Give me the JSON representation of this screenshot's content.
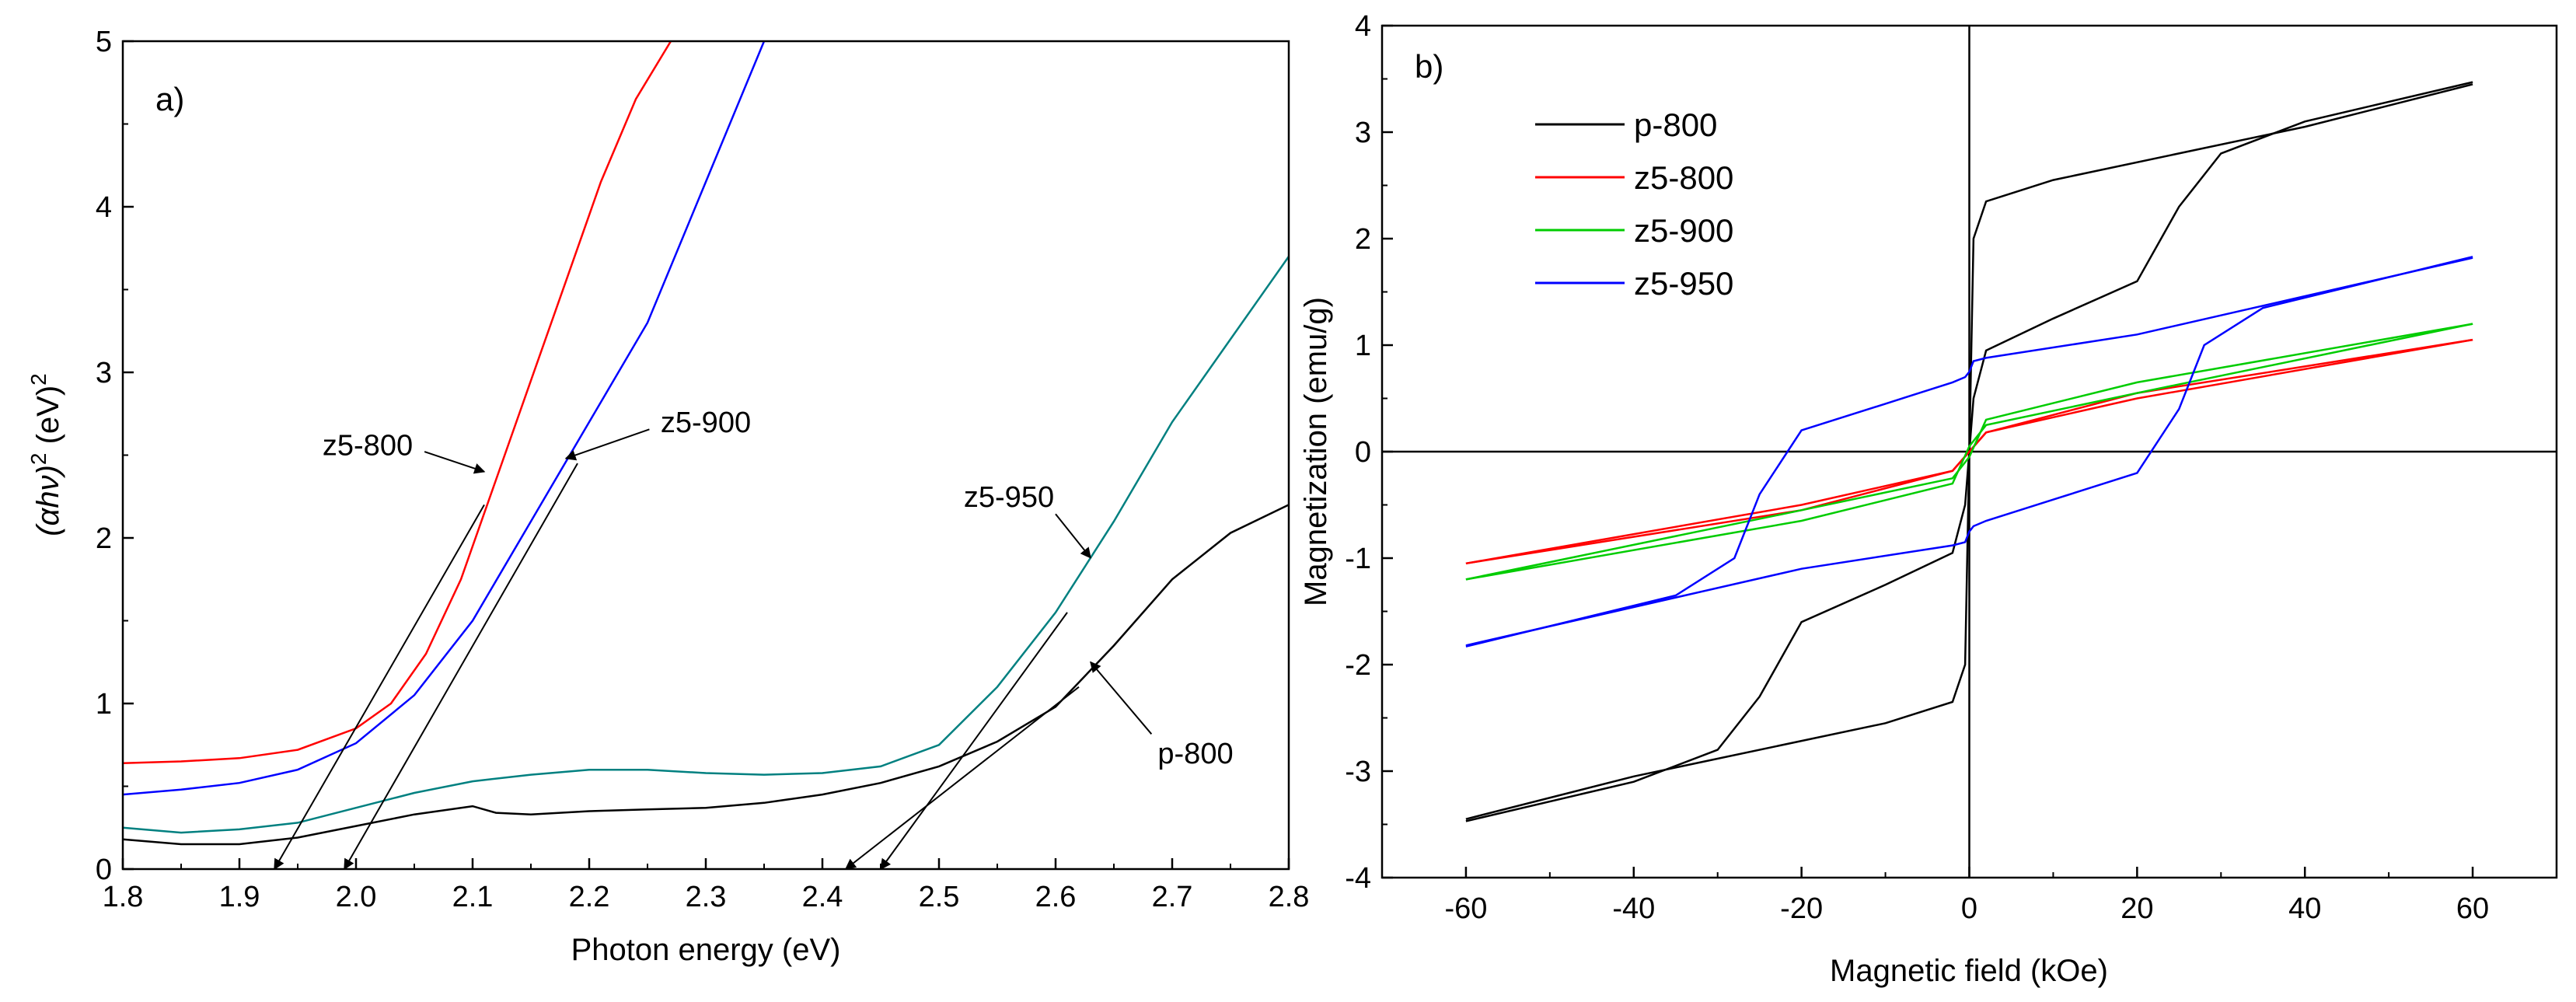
{
  "chart_data": [
    {
      "type": "line",
      "panel_label": "a)",
      "title": "",
      "xlabel": "Photon energy (eV)",
      "ylabel_parts": [
        "(αhν)",
        "2",
        " (eV)",
        "2"
      ],
      "xlim": [
        1.8,
        2.8
      ],
      "ylim": [
        0,
        5
      ],
      "xticks": [
        1.8,
        1.9,
        2.0,
        2.1,
        2.2,
        2.3,
        2.4,
        2.5,
        2.6,
        2.7,
        2.8
      ],
      "xtick_labels": [
        "1.8",
        "1.9",
        "2.0",
        "2.1",
        "2.2",
        "2.3",
        "2.4",
        "2.5",
        "2.6",
        "2.7",
        "2.8"
      ],
      "yticks": [
        0,
        1,
        2,
        3,
        4,
        5
      ],
      "ytick_labels": [
        "0",
        "1",
        "2",
        "3",
        "4",
        "5"
      ],
      "series": [
        {
          "name": "z5-800",
          "color": "#ff0000",
          "x": [
            1.8,
            1.85,
            1.9,
            1.95,
            2.0,
            2.03,
            2.06,
            2.09,
            2.12,
            2.15,
            2.18,
            2.21,
            2.24,
            2.27
          ],
          "y": [
            0.64,
            0.65,
            0.67,
            0.72,
            0.85,
            1.0,
            1.3,
            1.75,
            2.35,
            2.95,
            3.55,
            4.15,
            4.65,
            5.0
          ]
        },
        {
          "name": "z5-900",
          "color": "#0000ff",
          "x": [
            1.8,
            1.85,
            1.9,
            1.95,
            2.0,
            2.05,
            2.1,
            2.15,
            2.2,
            2.25,
            2.3,
            2.35
          ],
          "y": [
            0.45,
            0.48,
            0.52,
            0.6,
            0.76,
            1.05,
            1.5,
            2.1,
            2.7,
            3.3,
            4.15,
            5.0
          ]
        },
        {
          "name": "z5-950",
          "color": "#008080",
          "x": [
            1.8,
            1.85,
            1.9,
            1.95,
            2.0,
            2.05,
            2.1,
            2.15,
            2.2,
            2.25,
            2.3,
            2.35,
            2.4,
            2.45,
            2.5,
            2.55,
            2.6,
            2.65,
            2.7,
            2.75,
            2.8
          ],
          "y": [
            0.25,
            0.22,
            0.24,
            0.28,
            0.37,
            0.46,
            0.53,
            0.57,
            0.6,
            0.6,
            0.58,
            0.57,
            0.58,
            0.62,
            0.75,
            1.1,
            1.55,
            2.1,
            2.7,
            3.2,
            3.7
          ]
        },
        {
          "name": "p-800",
          "color": "#000000",
          "x": [
            1.8,
            1.85,
            1.9,
            1.95,
            2.0,
            2.05,
            2.1,
            2.12,
            2.15,
            2.2,
            2.25,
            2.3,
            2.35,
            2.4,
            2.45,
            2.5,
            2.55,
            2.6,
            2.65,
            2.7,
            2.75,
            2.8
          ],
          "y": [
            0.18,
            0.15,
            0.15,
            0.19,
            0.26,
            0.33,
            0.38,
            0.34,
            0.33,
            0.35,
            0.36,
            0.37,
            0.4,
            0.45,
            0.52,
            0.62,
            0.77,
            0.98,
            1.35,
            1.75,
            2.03,
            2.2
          ]
        }
      ],
      "tangent_lines": [
        {
          "from": [
            1.93,
            0
          ],
          "to": [
            2.11,
            2.2
          ]
        },
        {
          "from": [
            1.99,
            0
          ],
          "to": [
            2.19,
            2.45
          ]
        },
        {
          "from": [
            2.45,
            0
          ],
          "to": [
            2.61,
            1.55
          ]
        },
        {
          "from": [
            2.42,
            0
          ],
          "to": [
            2.62,
            1.1
          ]
        }
      ],
      "annotations": [
        {
          "text": "z5-800",
          "x": 2.01,
          "y": 2.56,
          "arrow_to": [
            2.11,
            2.4
          ]
        },
        {
          "text": "z5-900",
          "x": 2.3,
          "y": 2.7,
          "arrow_to": [
            2.18,
            2.48
          ]
        },
        {
          "text": "z5-950",
          "x": 2.56,
          "y": 2.25,
          "arrow_to": [
            2.63,
            1.88
          ]
        },
        {
          "text": "p-800",
          "x": 2.72,
          "y": 0.7,
          "arrow_to": [
            2.63,
            1.25
          ]
        }
      ]
    },
    {
      "type": "line",
      "panel_label": "b)",
      "title": "",
      "xlabel": "Magnetic field (kOe)",
      "ylabel": "Magnetization (emu/g)",
      "xlim": [
        -70,
        70
      ],
      "ylim": [
        -4,
        4
      ],
      "xticks": [
        -60,
        -40,
        -20,
        0,
        20,
        40,
        60
      ],
      "xtick_labels": [
        "-60",
        "-40",
        "-20",
        "0",
        "20",
        "40",
        "60"
      ],
      "yticks": [
        -4,
        -3,
        -2,
        -1,
        0,
        1,
        2,
        3,
        4
      ],
      "ytick_labels": [
        "-4",
        "-3",
        "-2",
        "-1",
        "0",
        "1",
        "2",
        "3",
        "4"
      ],
      "legend_position": "top-left",
      "series": [
        {
          "name": "p-800",
          "color": "#000000",
          "branch1": {
            "x": [
              60,
              40,
              30,
              25,
              20,
              10,
              2,
              0.5,
              0,
              -0.5,
              -2,
              -10,
              -40,
              -60
            ],
            "y": [
              3.47,
              3.1,
              2.8,
              2.3,
              1.6,
              1.25,
              0.95,
              0.5,
              0,
              -2.0,
              -2.35,
              -2.55,
              -3.05,
              -3.45
            ]
          },
          "branch2": {
            "x": [
              -60,
              -40,
              -30,
              -25,
              -20,
              -10,
              -2,
              -0.5,
              0,
              0.5,
              2,
              10,
              40,
              60
            ],
            "y": [
              -3.47,
              -3.1,
              -2.8,
              -2.3,
              -1.6,
              -1.25,
              -0.95,
              -0.5,
              0,
              2.0,
              2.35,
              2.55,
              3.05,
              3.45
            ]
          }
        },
        {
          "name": "z5-800",
          "color": "#ff0000",
          "branch1": {
            "x": [
              60,
              20,
              2,
              0,
              -2,
              -20,
              -60
            ],
            "y": [
              1.05,
              0.5,
              0.18,
              0.0,
              -0.18,
              -0.55,
              -1.05
            ]
          },
          "branch2": {
            "x": [
              -60,
              -20,
              -2,
              0,
              2,
              20,
              60
            ],
            "y": [
              -1.05,
              -0.5,
              -0.18,
              0.0,
              0.18,
              0.55,
              1.05
            ]
          }
        },
        {
          "name": "z5-900",
          "color": "#00cc00",
          "branch1": {
            "x": [
              60,
              20,
              2,
              0,
              -2,
              -20,
              -60
            ],
            "y": [
              1.2,
              0.55,
              0.25,
              0.05,
              -0.3,
              -0.65,
              -1.2
            ]
          },
          "branch2": {
            "x": [
              -60,
              -20,
              -2,
              0,
              2,
              20,
              60
            ],
            "y": [
              -1.2,
              -0.55,
              -0.25,
              -0.05,
              0.3,
              0.65,
              1.2
            ]
          }
        },
        {
          "name": "z5-950",
          "color": "#0000ff",
          "branch1": {
            "x": [
              60,
              35,
              28,
              25,
              20,
              10,
              2,
              0.5,
              0,
              -0.5,
              -2,
              -20,
              -60
            ],
            "y": [
              1.83,
              1.35,
              1.0,
              0.4,
              -0.2,
              -0.45,
              -0.65,
              -0.7,
              -0.75,
              -0.85,
              -0.88,
              -1.1,
              -1.82
            ]
          },
          "branch2": {
            "x": [
              -60,
              -35,
              -28,
              -25,
              -20,
              -10,
              -2,
              -0.5,
              0,
              0.5,
              2,
              20,
              60
            ],
            "y": [
              -1.83,
              -1.35,
              -1.0,
              -0.4,
              0.2,
              0.45,
              0.65,
              0.7,
              0.75,
              0.85,
              0.88,
              1.1,
              1.82
            ]
          }
        }
      ]
    }
  ]
}
